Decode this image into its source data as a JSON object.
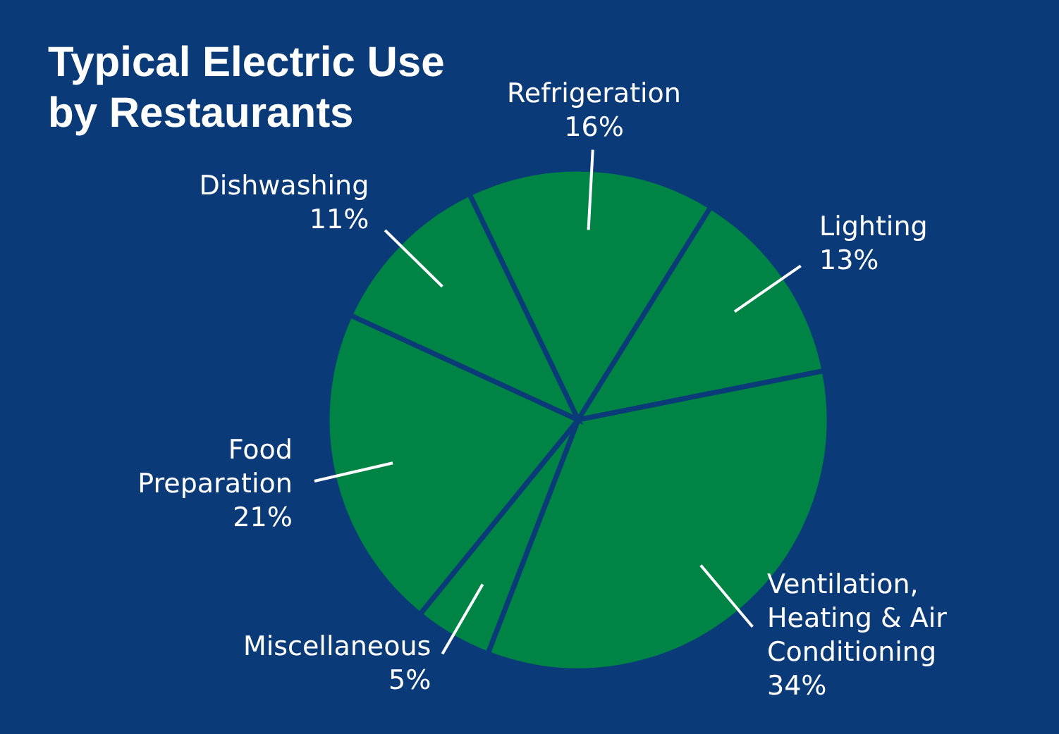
{
  "chart_data": {
    "type": "pie",
    "title": "Typical Electric Use by Restaurants",
    "categories": [
      "Refrigeration",
      "Lighting",
      "Ventilation, Heating & Air Conditioning",
      "Miscellaneous",
      "Food Preparation",
      "Dishwashing"
    ],
    "values": [
      16,
      13,
      34,
      5,
      21,
      11
    ],
    "colors": [
      "#008445",
      "#008445",
      "#008445",
      "#008445",
      "#008445",
      "#008445"
    ],
    "value_labels": [
      "16%",
      "13%",
      "34%",
      "5%",
      "21%",
      "11%"
    ]
  }
}
